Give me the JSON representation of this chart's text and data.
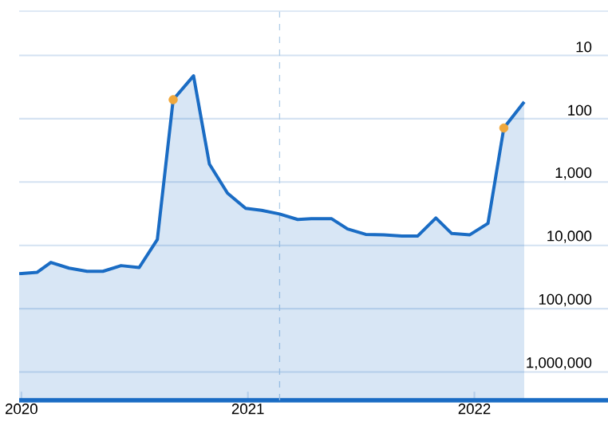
{
  "chart_data": {
    "type": "area",
    "log": "y",
    "grid": "y",
    "x": [
      2019.99,
      2020.07,
      2020.13,
      2020.21,
      2020.29,
      2020.36,
      2020.44,
      2020.52,
      2020.6,
      2020.67,
      2020.76,
      2020.83,
      2020.91,
      2020.99,
      2021.06,
      2021.14,
      2021.22,
      2021.28,
      2021.37,
      2021.44,
      2021.52,
      2021.6,
      2021.68,
      2021.75,
      2021.83,
      2021.9,
      2021.98,
      2022.06,
      2022.13,
      2022.22
    ],
    "series": [
      {
        "color": "#1a6cc4",
        "values": [
          28000,
          26600,
          18600,
          22900,
          25700,
          25700,
          20900,
          22400,
          8100,
          50,
          21,
          520,
          1500,
          2600,
          2800,
          3200,
          3900,
          3800,
          3800,
          5500,
          6700,
          6800,
          7100,
          7100,
          3700,
          6500,
          6800,
          4500,
          140,
          54
        ]
      },
      {
        "type": "scatter",
        "marker": "circle",
        "color": "#f0a83c",
        "x": [
          2020.67,
          2022.13
        ],
        "values": [
          50,
          140
        ]
      }
    ],
    "xlim": [
      2019.99,
      2022.59
    ],
    "ylim": [
      2800000,
      2
    ],
    "xticks": [
      2020,
      2021,
      2022
    ],
    "yticks": [
      10,
      100,
      {
        "value": 1000,
        "label": "1,000"
      },
      {
        "value": 10000,
        "label": "10,000"
      },
      {
        "value": 100000,
        "label": "100,000"
      },
      {
        "value": 1000000,
        "label": "1,000,000"
      }
    ],
    "ref_lines": [
      {
        "axis": "x",
        "value": 2021.14,
        "color": "#b0cde8",
        "line_style": "dashed"
      }
    ]
  }
}
